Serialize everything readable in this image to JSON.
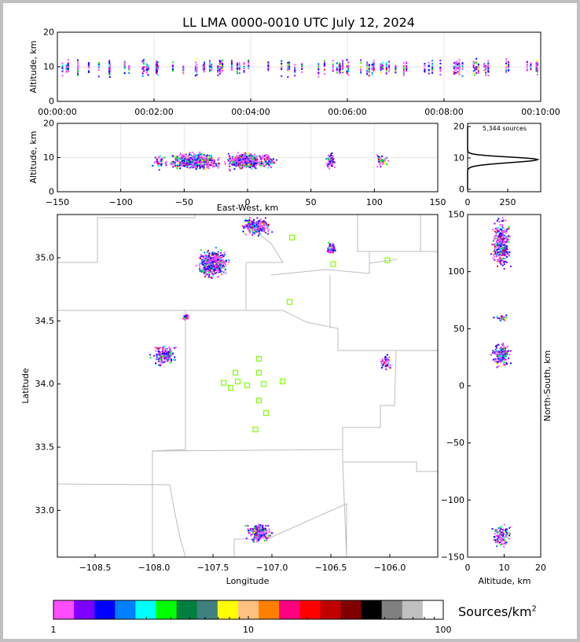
{
  "chart_data": {
    "title": "LL LMA 0000-0010 UTC July 12, 2024",
    "source_count_label": "5,344 sources",
    "time_height": {
      "type": "scatter",
      "ylabel": "Altitude, km",
      "ylim": [
        0,
        20
      ],
      "yticks": [
        "0",
        "10",
        "20"
      ],
      "xticks": [
        "00:00:00",
        "00:02:00",
        "00:04:00",
        "00:06:00",
        "00:08:00",
        "00:10:00"
      ],
      "xlim_minutes": [
        0,
        10
      ]
    },
    "ew_height": {
      "type": "scatter",
      "xlabel": "East-West, km",
      "ylabel": "Altitude, km",
      "xlim": [
        -150,
        150
      ],
      "ylim": [
        0,
        20
      ],
      "xticks": [
        "−150",
        "−100",
        "−50",
        "0",
        "50",
        "100",
        "150"
      ],
      "yticks": [
        "0",
        "10",
        "20"
      ]
    },
    "histogram": {
      "type": "line",
      "xlim": [
        0,
        460
      ],
      "ylim": [
        0,
        20
      ],
      "xticks": [
        "0",
        "250"
      ],
      "yticks": [
        "0",
        "10",
        "20"
      ],
      "peak_altitude_km": 9.5,
      "peak_count": 437
    },
    "plan_view": {
      "type": "scatter",
      "xlabel": "Longitude",
      "ylabel": "Latitude",
      "xlim": [
        -108.82,
        -105.59
      ],
      "ylim": [
        32.63,
        35.34
      ],
      "xticks": [
        "−108.5",
        "−108.0",
        "−107.5",
        "−107.0",
        "−106.5",
        "−106.0"
      ],
      "yticks": [
        "33.0",
        "33.5",
        "34.0",
        "34.5",
        "35.0"
      ],
      "clusters": [
        {
          "lon": [
            -107.67,
            -107.35
          ],
          "lat": [
            34.83,
            35.1
          ],
          "n": 500
        },
        {
          "lon": [
            -107.28,
            -107.0
          ],
          "lat": [
            35.17,
            35.34
          ],
          "n": 300
        },
        {
          "lon": [
            -106.55,
            -106.45
          ],
          "lat": [
            35.03,
            35.13
          ],
          "n": 80
        },
        {
          "lon": [
            -107.77,
            -107.7
          ],
          "lat": [
            34.51,
            34.57
          ],
          "n": 30
        },
        {
          "lon": [
            -108.05,
            -107.8
          ],
          "lat": [
            34.13,
            34.33
          ],
          "n": 160
        },
        {
          "lon": [
            -106.1,
            -105.98
          ],
          "lat": [
            34.1,
            34.26
          ],
          "n": 50
        },
        {
          "lon": [
            -107.25,
            -106.98
          ],
          "lat": [
            32.73,
            32.93
          ],
          "n": 200
        }
      ],
      "stations": [
        [
          -106.83,
          35.16
        ],
        [
          -106.02,
          34.98
        ],
        [
          -106.48,
          34.95
        ],
        [
          -106.85,
          34.65
        ],
        [
          -107.11,
          34.2
        ],
        [
          -107.31,
          34.09
        ],
        [
          -107.11,
          34.09
        ],
        [
          -107.41,
          34.01
        ],
        [
          -107.29,
          34.02
        ],
        [
          -107.35,
          33.97
        ],
        [
          -107.21,
          33.99
        ],
        [
          -107.07,
          34.0
        ],
        [
          -106.91,
          34.02
        ],
        [
          -107.11,
          33.87
        ],
        [
          -107.05,
          33.77
        ],
        [
          -107.14,
          33.64
        ]
      ]
    },
    "ns_height": {
      "type": "scatter",
      "xlabel": "Altitude, km",
      "ylabel": "North-South, km",
      "xlim": [
        0,
        20
      ],
      "ylim": [
        -150,
        150
      ],
      "xticks": [
        "0",
        "10",
        "20"
      ],
      "yticks": [
        "−150",
        "−100",
        "−50",
        "0",
        "50",
        "100",
        "150"
      ]
    },
    "colorbar": {
      "label": "Sources/km",
      "label_sup": "2",
      "scale": "log",
      "range": [
        1,
        100
      ],
      "ticks": [
        "1",
        "10",
        "100"
      ],
      "colors": [
        "#ff4dff",
        "#8000ff",
        "#0000ff",
        "#0080ff",
        "#00ffff",
        "#00ff00",
        "#008040",
        "#408080",
        "#ffff00",
        "#ffc080",
        "#ff8000",
        "#ff0080",
        "#ff0000",
        "#c00000",
        "#800000",
        "#000000",
        "#808080",
        "#c0c0c0",
        "#ffffff"
      ]
    }
  }
}
